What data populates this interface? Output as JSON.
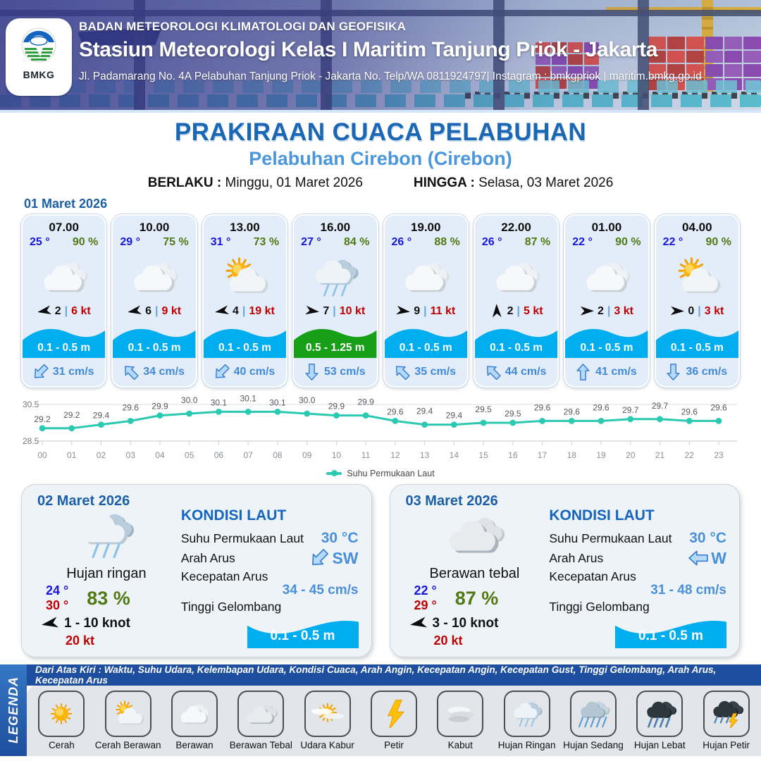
{
  "header": {
    "agency": "BADAN METEOROLOGI KLIMATOLOGI DAN GEOFISIKA",
    "station": "Stasiun Meteorologi Kelas I Maritim Tanjung Priok - Jakarta",
    "address": "Jl. Padamarang No. 4A Pelabuhan Tanjung Priok - Jakarta No. Telp/WA 0811924797| Instagram : bmkgpriok | maritim.bmkg.go.id",
    "logo_text": "BMKG"
  },
  "title": {
    "heading": "PRAKIRAAN CUACA PELABUHAN",
    "port": "Pelabuhan Cirebon (Cirebon)",
    "berlaku_label": "BERLAKU :",
    "berlaku_value": "Minggu, 01 Maret 2026",
    "hingga_label": "HINGGA :",
    "hingga_value": "Selasa, 03 Maret 2026",
    "forecast_date": "01 Maret 2026"
  },
  "forecast_cards": [
    {
      "time": "07.00",
      "temp": "25 °",
      "humidity": "90 %",
      "icon": "berawan",
      "wind_deg": 170,
      "wind_speed": "2",
      "sep": "|",
      "gust": "6 kt",
      "wave": "0.1 - 0.5 m",
      "wave_color": "#00aeef",
      "current_deg": 225,
      "current": "31 cm/s"
    },
    {
      "time": "10.00",
      "temp": "29 °",
      "humidity": "75 %",
      "icon": "berawan",
      "wind_deg": 170,
      "wind_speed": "6",
      "sep": "|",
      "gust": "9 kt",
      "wave": "0.1 - 0.5 m",
      "wave_color": "#00aeef",
      "current_deg": 315,
      "current": "34 cm/s"
    },
    {
      "time": "13.00",
      "temp": "31 °",
      "humidity": "73 %",
      "icon": "cerah-berawan",
      "wind_deg": 170,
      "wind_speed": "4",
      "sep": "|",
      "gust": "19 kt",
      "wave": "0.1 - 0.5 m",
      "wave_color": "#00aeef",
      "current_deg": 225,
      "current": "40 cm/s"
    },
    {
      "time": "16.00",
      "temp": "27 °",
      "humidity": "84 %",
      "icon": "hujan-ringan",
      "wind_deg": 8,
      "wind_speed": "7",
      "sep": "|",
      "gust": "10 kt",
      "wave": "0.5 - 1.25 m",
      "wave_color": "#17a017",
      "current_deg": 180,
      "current": "53 cm/s"
    },
    {
      "time": "19.00",
      "temp": "26 °",
      "humidity": "88 %",
      "icon": "berawan",
      "wind_deg": 8,
      "wind_speed": "9",
      "sep": "|",
      "gust": "11 kt",
      "wave": "0.1 - 0.5 m",
      "wave_color": "#00aeef",
      "current_deg": 315,
      "current": "35 cm/s"
    },
    {
      "time": "22.00",
      "temp": "26 °",
      "humidity": "87 %",
      "icon": "berawan",
      "wind_deg": 268,
      "wind_speed": "2",
      "sep": "|",
      "gust": "5 kt",
      "wave": "0.1 - 0.5 m",
      "wave_color": "#00aeef",
      "current_deg": 315,
      "current": "44 cm/s"
    },
    {
      "time": "01.00",
      "temp": "22 °",
      "humidity": "90 %",
      "icon": "berawan",
      "wind_deg": 0,
      "wind_speed": "2",
      "sep": "|",
      "gust": "3 kt",
      "wave": "0.1 - 0.5 m",
      "wave_color": "#00aeef",
      "current_deg": 0,
      "current": "41 cm/s"
    },
    {
      "time": "04.00",
      "temp": "22 °",
      "humidity": "90 %",
      "icon": "cerah-berawan",
      "wind_deg": 2,
      "wind_speed": "0",
      "sep": "|",
      "gust": "3 kt",
      "wave": "0.1 - 0.5 m",
      "wave_color": "#00aeef",
      "current_deg": 180,
      "current": "36 cm/s"
    }
  ],
  "chart_data": {
    "type": "line",
    "series_name": "Suhu Permukaan Laut",
    "x": [
      "00",
      "01",
      "02",
      "03",
      "04",
      "05",
      "06",
      "07",
      "08",
      "09",
      "10",
      "11",
      "12",
      "13",
      "14",
      "15",
      "16",
      "17",
      "18",
      "19",
      "20",
      "21",
      "22",
      "23"
    ],
    "values": [
      29.2,
      29.2,
      29.4,
      29.6,
      29.9,
      30.0,
      30.1,
      30.1,
      30.1,
      30.0,
      29.9,
      29.9,
      29.6,
      29.4,
      29.4,
      29.5,
      29.5,
      29.6,
      29.6,
      29.6,
      29.7,
      29.7,
      29.6,
      29.6
    ],
    "ylim": [
      28.5,
      30.5
    ],
    "yticks": [
      "30.5",
      "28.5"
    ],
    "line_color": "#2cc9b2",
    "grid": "top-and-bottom-only",
    "legend_position": "bottom"
  },
  "day_cards": [
    {
      "date": "02 Maret 2026",
      "icon": "hujan-ringan",
      "weather": "Hujan ringan",
      "temp_min": "24 °",
      "temp_max": "30 °",
      "humidity": "83 %",
      "wind_deg": 170,
      "wind_range": "1  - 10 knot",
      "gust": "20 kt",
      "sea": {
        "heading": "KONDISI LAUT",
        "sst_label": "Suhu Permukaan Laut",
        "sst_value": "30 °C",
        "arah_label": "Arah Arus",
        "arah_value": "SW",
        "arah_deg": 225,
        "kecepatan_label": "Kecepatan Arus",
        "kecepatan_value": "34  - 45 cm/s",
        "gelombang_label": "Tinggi Gelombang",
        "gelombang_value": "0.1 - 0.5 m"
      }
    },
    {
      "date": "03 Maret 2026",
      "icon": "berawan-tebal",
      "weather": "Berawan tebal",
      "temp_min": "22 °",
      "temp_max": "29 °",
      "humidity": "87 %",
      "wind_deg": 170,
      "wind_range": "3  - 10 knot",
      "gust": "20 kt",
      "sea": {
        "heading": "KONDISI LAUT",
        "sst_label": "Suhu Permukaan Laut",
        "sst_value": "30 °C",
        "arah_label": "Arah Arus",
        "arah_value": "W",
        "arah_deg": 270,
        "kecepatan_label": "Kecepatan Arus",
        "kecepatan_value": "31 - 48 cm/s",
        "gelombang_label": "Tinggi Gelombang",
        "gelombang_value": "0.1 - 0.5 m"
      }
    }
  ],
  "legend": {
    "band": "LEGENDA",
    "note": "Dari Atas Kiri : Waktu, Suhu Udara, Kelembapan Udara, Kondisi Cuaca, Arah Angin, Kecepatan Angin, Kecepatan Gust, Tinggi Gelombang, Arah Arus, Kecepatan Arus",
    "items": [
      {
        "label": "Cerah",
        "icon": "cerah"
      },
      {
        "label": "Cerah Berawan",
        "icon": "cerah-berawan"
      },
      {
        "label": "Berawan",
        "icon": "berawan"
      },
      {
        "label": "Berawan Tebal",
        "icon": "berawan-tebal"
      },
      {
        "label": "Udara Kabur",
        "icon": "udara-kabur"
      },
      {
        "label": "Petir",
        "icon": "petir"
      },
      {
        "label": "Kabut",
        "icon": "kabut"
      },
      {
        "label": "Hujan Ringan",
        "icon": "hujan-ringan"
      },
      {
        "label": "Hujan Sedang",
        "icon": "hujan-sedang"
      },
      {
        "label": "Hujan Lebat",
        "icon": "hujan-lebat"
      },
      {
        "label": "Hujan Petir",
        "icon": "hujan-petir"
      }
    ]
  },
  "colors": {
    "accent_blue": "#1b67b3",
    "light_blue": "#4a97dc",
    "temp_blue": "#1616e0",
    "humidity_green": "#527a14",
    "gust_red": "#c00000",
    "wave_blue": "#00aeef",
    "wave_green": "#17a017",
    "chart_teal": "#2cc9b2",
    "legend_navy": "#1d4f9e"
  }
}
